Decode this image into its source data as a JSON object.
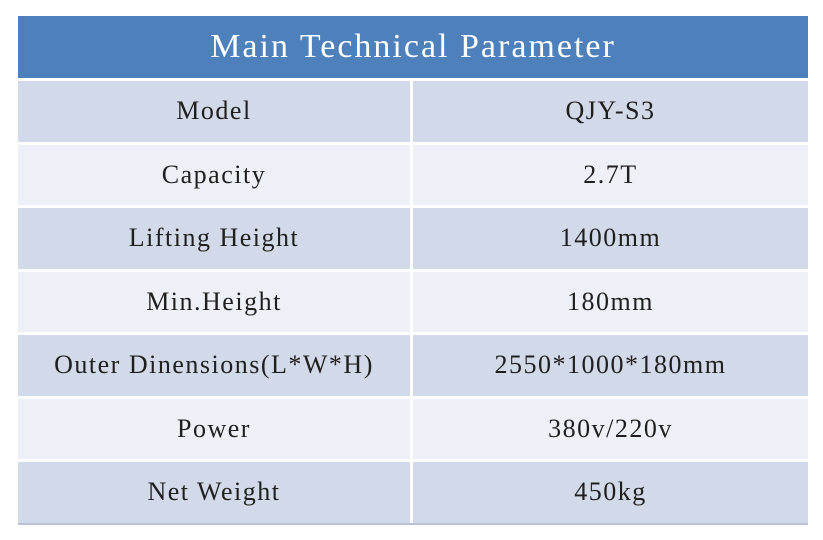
{
  "table": {
    "title": "Main Technical Parameter",
    "rows": [
      {
        "label": "Model",
        "value": "QJY-S3"
      },
      {
        "label": "Capacity",
        "value": "2.7T"
      },
      {
        "label": "Lifting Height",
        "value": "1400mm"
      },
      {
        "label": "Min.Height",
        "value": "180mm"
      },
      {
        "label": "Outer Dinensions(L*W*H)",
        "value": "2550*1000*180mm"
      },
      {
        "label": "Power",
        "value": "380v/220v"
      },
      {
        "label": "Net Weight",
        "value": "450kg"
      }
    ],
    "colors": {
      "header_bg": "#4e80bc",
      "row_alt_bg": "#d2d9e8",
      "row_bg": "#edf1f7",
      "header_text": "#ffffff",
      "cell_text": "#1f1f1f",
      "divider": "#ffffff",
      "bottom_border": "#b7c2d8"
    }
  }
}
